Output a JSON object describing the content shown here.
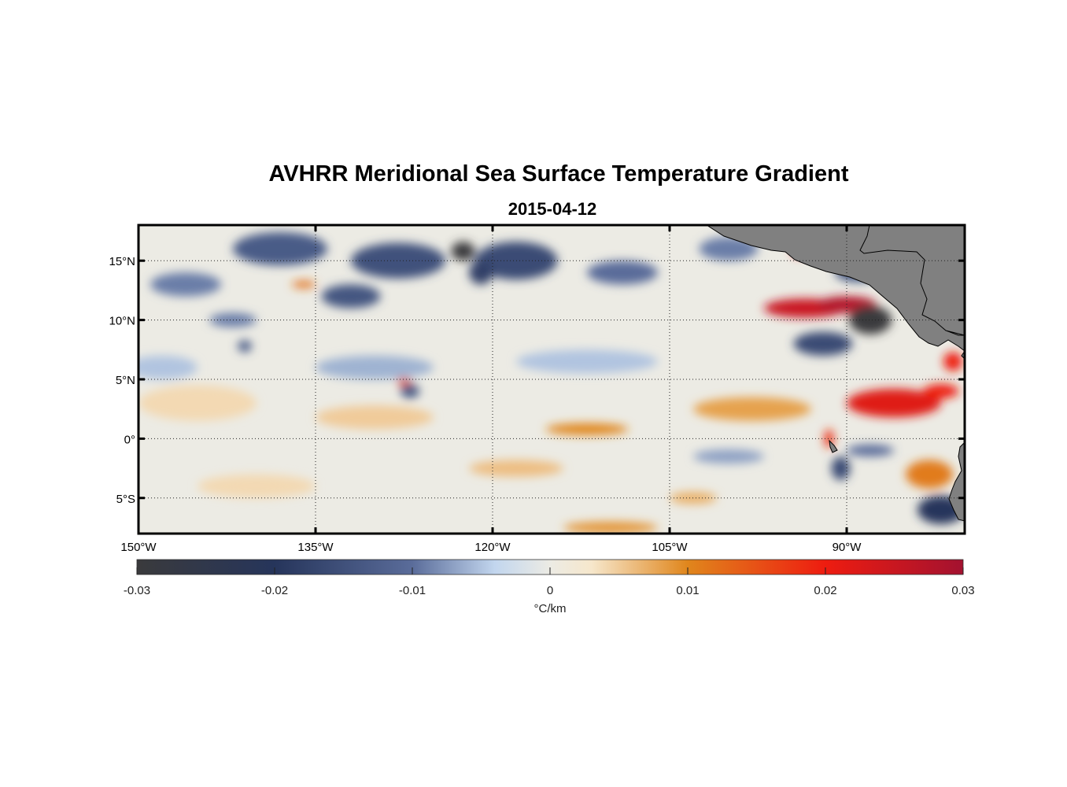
{
  "title": "AVHRR Meridional Sea Surface Temperature Gradient",
  "subtitle": "2015-04-12",
  "map": {
    "lon_range": [
      -150,
      -80
    ],
    "lat_range": [
      -8,
      18
    ],
    "lon_ticks": [
      {
        "value": -150,
        "label": "150°W"
      },
      {
        "value": -135,
        "label": "135°W"
      },
      {
        "value": -120,
        "label": "120°W"
      },
      {
        "value": -105,
        "label": "105°W"
      },
      {
        "value": -90,
        "label": "90°W"
      }
    ],
    "lat_ticks": [
      {
        "value": 15,
        "label": "15°N"
      },
      {
        "value": 10,
        "label": "10°N"
      },
      {
        "value": 5,
        "label": "5°N"
      },
      {
        "value": 0,
        "label": "0°"
      },
      {
        "value": -5,
        "label": "5°S"
      }
    ],
    "grid": "dotted",
    "land_color": "#808080",
    "features": [
      {
        "lon": -93.5,
        "lat": 11.0,
        "sign": 1,
        "mag": 0.025,
        "rx": 3.5,
        "ry": 0.8
      },
      {
        "lon": -90.0,
        "lat": 11.3,
        "sign": 1,
        "mag": 0.028,
        "rx": 2.5,
        "ry": 0.7
      },
      {
        "lon": -86.0,
        "lat": 3.0,
        "sign": 1,
        "mag": 0.022,
        "rx": 4.0,
        "ry": 1.2
      },
      {
        "lon": -82.0,
        "lat": 4.0,
        "sign": 1,
        "mag": 0.02,
        "rx": 1.5,
        "ry": 0.6
      },
      {
        "lon": -81.0,
        "lat": 6.5,
        "sign": 1,
        "mag": 0.02,
        "rx": 0.8,
        "ry": 0.8
      },
      {
        "lon": -94.0,
        "lat": 15.8,
        "sign": 1,
        "mag": 0.02,
        "rx": 0.6,
        "ry": 0.4
      },
      {
        "lon": -83.0,
        "lat": -3.0,
        "sign": 1,
        "mag": 0.011,
        "rx": 2.0,
        "ry": 1.2
      },
      {
        "lon": -112.0,
        "lat": 0.8,
        "sign": 1,
        "mag": 0.01,
        "rx": 3.5,
        "ry": 0.5
      },
      {
        "lon": -98.0,
        "lat": 2.5,
        "sign": 1,
        "mag": 0.008,
        "rx": 5.0,
        "ry": 1.0
      },
      {
        "lon": -110.0,
        "lat": -7.5,
        "sign": 1,
        "mag": 0.009,
        "rx": 4.0,
        "ry": 0.5
      },
      {
        "lon": -118.0,
        "lat": -2.5,
        "sign": 1,
        "mag": 0.006,
        "rx": 4.0,
        "ry": 0.7
      },
      {
        "lon": -136.0,
        "lat": 13.0,
        "sign": 1,
        "mag": 0.012,
        "rx": 1.0,
        "ry": 0.3
      },
      {
        "lon": -127.5,
        "lat": 4.8,
        "sign": 1,
        "mag": 0.015,
        "rx": 0.6,
        "ry": 0.3
      },
      {
        "lon": -130.0,
        "lat": 1.8,
        "sign": 1,
        "mag": 0.005,
        "rx": 5.0,
        "ry": 1.0
      },
      {
        "lon": -145.0,
        "lat": 3.0,
        "sign": 1,
        "mag": 0.004,
        "rx": 5.0,
        "ry": 1.5
      },
      {
        "lon": -140.0,
        "lat": -4.0,
        "sign": 1,
        "mag": 0.004,
        "rx": 5.0,
        "ry": 1.0
      },
      {
        "lon": -103.0,
        "lat": -5.0,
        "sign": 1,
        "mag": 0.007,
        "rx": 2.0,
        "ry": 0.5
      },
      {
        "lon": -91.5,
        "lat": 0.0,
        "sign": 1,
        "mag": 0.018,
        "rx": 0.4,
        "ry": 0.8
      },
      {
        "lon": -122.5,
        "lat": 15.8,
        "sign": -1,
        "mag": 0.03,
        "rx": 1.0,
        "ry": 0.8
      },
      {
        "lon": -118.0,
        "lat": 15.0,
        "sign": -1,
        "mag": 0.016,
        "rx": 3.5,
        "ry": 1.6
      },
      {
        "lon": -128.0,
        "lat": 15.0,
        "sign": -1,
        "mag": 0.015,
        "rx": 4.0,
        "ry": 1.5
      },
      {
        "lon": -138.0,
        "lat": 16.0,
        "sign": -1,
        "mag": 0.013,
        "rx": 4.0,
        "ry": 1.4
      },
      {
        "lon": -132.0,
        "lat": 12.0,
        "sign": -1,
        "mag": 0.014,
        "rx": 2.5,
        "ry": 1.0
      },
      {
        "lon": -121.0,
        "lat": 14.0,
        "sign": -1,
        "mag": 0.018,
        "rx": 1.0,
        "ry": 1.0
      },
      {
        "lon": -146.0,
        "lat": 13.0,
        "sign": -1,
        "mag": 0.009,
        "rx": 3.0,
        "ry": 1.0
      },
      {
        "lon": -142.0,
        "lat": 10.0,
        "sign": -1,
        "mag": 0.009,
        "rx": 2.0,
        "ry": 0.6
      },
      {
        "lon": -109.0,
        "lat": 14.0,
        "sign": -1,
        "mag": 0.01,
        "rx": 3.0,
        "ry": 1.0
      },
      {
        "lon": -100.0,
        "lat": 16.0,
        "sign": -1,
        "mag": 0.009,
        "rx": 2.5,
        "ry": 1.0
      },
      {
        "lon": -88.0,
        "lat": 10.0,
        "sign": -1,
        "mag": 0.03,
        "rx": 1.8,
        "ry": 1.2
      },
      {
        "lon": -92.0,
        "lat": 8.0,
        "sign": -1,
        "mag": 0.016,
        "rx": 2.5,
        "ry": 1.0
      },
      {
        "lon": -89.0,
        "lat": 14.0,
        "sign": -1,
        "mag": 0.014,
        "rx": 2.0,
        "ry": 0.8
      },
      {
        "lon": -82.0,
        "lat": -6.0,
        "sign": -1,
        "mag": 0.02,
        "rx": 2.0,
        "ry": 1.2
      },
      {
        "lon": -90.5,
        "lat": -2.5,
        "sign": -1,
        "mag": 0.016,
        "rx": 0.8,
        "ry": 1.0
      },
      {
        "lon": -127.0,
        "lat": 4.0,
        "sign": -1,
        "mag": 0.014,
        "rx": 0.8,
        "ry": 0.6
      },
      {
        "lon": -141.0,
        "lat": 7.8,
        "sign": -1,
        "mag": 0.013,
        "rx": 0.6,
        "ry": 0.5
      },
      {
        "lon": -88.0,
        "lat": -1.0,
        "sign": -1,
        "mag": 0.01,
        "rx": 2.0,
        "ry": 0.5
      },
      {
        "lon": -100.0,
        "lat": -1.5,
        "sign": -1,
        "mag": 0.007,
        "rx": 3.0,
        "ry": 0.6
      },
      {
        "lon": -130.0,
        "lat": 6.0,
        "sign": -1,
        "mag": 0.006,
        "rx": 5.0,
        "ry": 1.0
      },
      {
        "lon": -112.0,
        "lat": 6.5,
        "sign": -1,
        "mag": 0.005,
        "rx": 6.0,
        "ry": 1.0
      },
      {
        "lon": -148.0,
        "lat": 6.0,
        "sign": -1,
        "mag": 0.005,
        "rx": 3.0,
        "ry": 1.0
      }
    ]
  },
  "colorbar": {
    "min": -0.03,
    "max": 0.03,
    "ticks": [
      {
        "value": -0.03,
        "label": "-0.03"
      },
      {
        "value": -0.02,
        "label": "-0.02"
      },
      {
        "value": -0.01,
        "label": "-0.01"
      },
      {
        "value": 0,
        "label": "0"
      },
      {
        "value": 0.01,
        "label": "0.01"
      },
      {
        "value": 0.02,
        "label": "0.02"
      },
      {
        "value": 0.03,
        "label": "0.03"
      }
    ],
    "unit_label": "°C/km",
    "stops": [
      {
        "v": -0.03,
        "c": "#3a3a3c"
      },
      {
        "v": -0.02,
        "c": "#26355b"
      },
      {
        "v": -0.01,
        "c": "#5a6c9a"
      },
      {
        "v": -0.004,
        "c": "#c2d6ee"
      },
      {
        "v": 0,
        "c": "#ecebe4"
      },
      {
        "v": 0.003,
        "c": "#f6e7cc"
      },
      {
        "v": 0.01,
        "c": "#e0861c"
      },
      {
        "v": 0.02,
        "c": "#ee1c10"
      },
      {
        "v": 0.03,
        "c": "#a31230"
      }
    ]
  }
}
